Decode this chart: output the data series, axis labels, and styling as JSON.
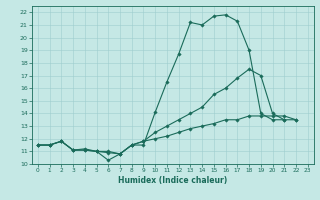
{
  "title": "",
  "xlabel": "Humidex (Indice chaleur)",
  "xlim": [
    -0.5,
    23.5
  ],
  "ylim": [
    10,
    22.5
  ],
  "xticks": [
    0,
    1,
    2,
    3,
    4,
    5,
    6,
    7,
    8,
    9,
    10,
    11,
    12,
    13,
    14,
    15,
    16,
    17,
    18,
    19,
    20,
    21,
    22,
    23
  ],
  "yticks": [
    10,
    11,
    12,
    13,
    14,
    15,
    16,
    17,
    18,
    19,
    20,
    21,
    22
  ],
  "bg_color": "#c5e8e5",
  "grid_color": "#9ecece",
  "line_color": "#1a6b5a",
  "line1_y": [
    11.5,
    11.5,
    11.8,
    11.1,
    11.1,
    11.0,
    10.3,
    10.8,
    11.5,
    11.5,
    14.1,
    16.5,
    18.7,
    21.2,
    21.0,
    21.7,
    21.8,
    21.3,
    19.0,
    14.0,
    13.5,
    13.5,
    null,
    null
  ],
  "line2_y": [
    11.5,
    11.5,
    11.8,
    11.1,
    11.1,
    11.0,
    10.9,
    10.8,
    11.5,
    11.8,
    12.5,
    13.0,
    13.5,
    14.0,
    14.5,
    15.5,
    16.0,
    16.8,
    17.5,
    17.0,
    14.0,
    13.5,
    13.5,
    null
  ],
  "line3_y": [
    11.5,
    11.5,
    11.8,
    11.1,
    11.2,
    11.0,
    11.0,
    10.8,
    11.5,
    11.8,
    12.0,
    12.2,
    12.5,
    12.8,
    13.0,
    13.2,
    13.5,
    13.5,
    13.8,
    13.8,
    13.8,
    13.8,
    13.5,
    null
  ]
}
